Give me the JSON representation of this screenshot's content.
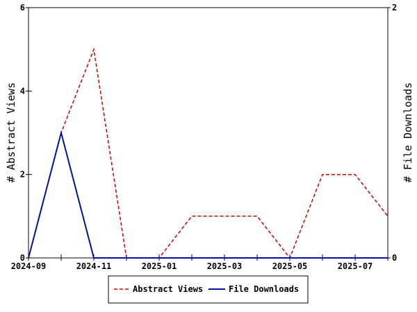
{
  "chart_data": {
    "type": "line",
    "x": [
      "2024-09",
      "2024-10",
      "2024-11",
      "2024-12",
      "2025-01",
      "2025-02",
      "2025-03",
      "2025-04",
      "2025-05",
      "2025-06",
      "2025-07",
      "2025-08"
    ],
    "x_ticks": [
      "2024-09",
      "2024-11",
      "2025-01",
      "2025-03",
      "2025-05",
      "2025-07"
    ],
    "series": [
      {
        "name": "Abstract Views",
        "axis": "left",
        "color": "#cc0000",
        "style": "dashed",
        "values": [
          0,
          3,
          5,
          0,
          0,
          1,
          1,
          1,
          0,
          2,
          2,
          1
        ]
      },
      {
        "name": "File Downloads",
        "axis": "right",
        "color": "#00129e",
        "style": "solid",
        "values": [
          0,
          1,
          0,
          0,
          0,
          0,
          0,
          0,
          0,
          0,
          0,
          0
        ]
      }
    ],
    "ylabel": "# Abstract Views",
    "y2label": "# File Downloads",
    "ylim": [
      0,
      6
    ],
    "y2lim": [
      0,
      2
    ],
    "y_ticks": [
      "0",
      "2",
      "4",
      "6"
    ],
    "y2_ticks": [
      "0",
      "2"
    ],
    "grid": false,
    "legend_position": "bottom"
  }
}
